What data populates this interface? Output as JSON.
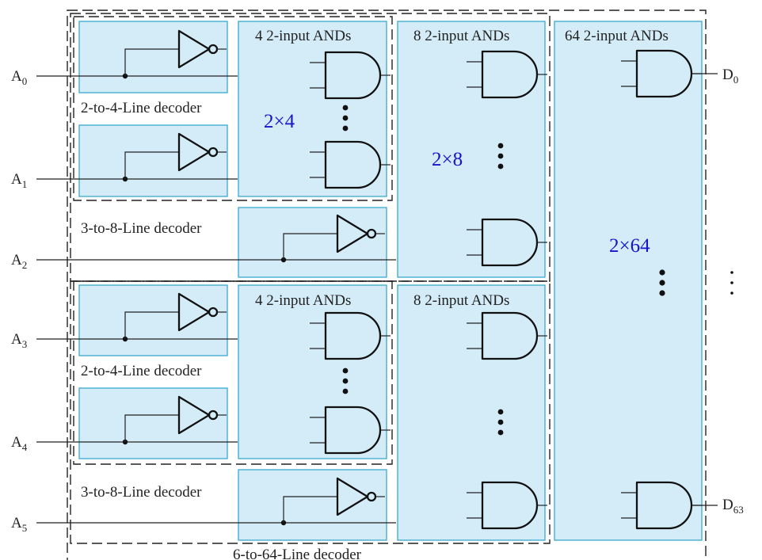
{
  "labels": {
    "and_group_4": "4 2-input ANDs",
    "and_group_8": "8 2-input ANDs",
    "and_group_64": "64 2-input ANDs",
    "dec_2to4": "2-to-4-Line decoder",
    "dec_3to8": "3-to-8-Line decoder",
    "dec_6to64": "6-to-64-Line decoder",
    "count_2x4": "2×4",
    "count_2x8": "2×8",
    "count_2x64": "2×64"
  },
  "inputs": [
    {
      "base": "A",
      "sub": "0"
    },
    {
      "base": "A",
      "sub": "1"
    },
    {
      "base": "A",
      "sub": "2"
    },
    {
      "base": "A",
      "sub": "3"
    },
    {
      "base": "A",
      "sub": "4"
    },
    {
      "base": "A",
      "sub": "5"
    }
  ],
  "outputs": [
    {
      "base": "D",
      "sub": "0"
    },
    {
      "base": "D",
      "sub": "63"
    }
  ],
  "colors": {
    "block_fill": "#d4ecf7",
    "block_border": "#3aa9cf",
    "count_text": "#1515cc",
    "lines": "#222222"
  }
}
